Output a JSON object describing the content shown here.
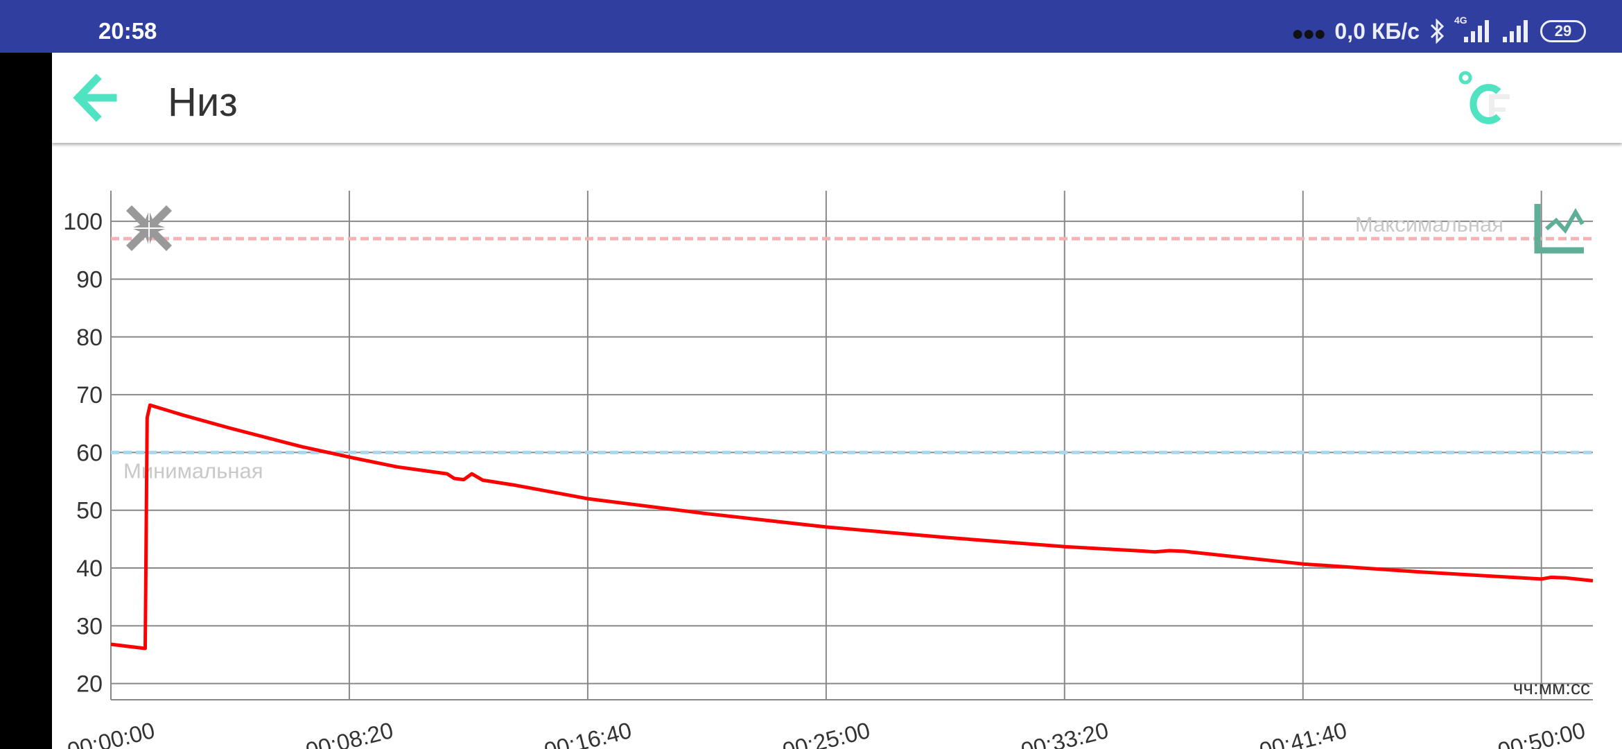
{
  "status_bar": {
    "time": "20:58",
    "network_speed": "0,0 КБ/с",
    "network_type": "4G",
    "battery_level": "29",
    "icons": [
      "more-dots-icon",
      "bluetooth-icon",
      "signal-4g-icon",
      "signal-icon",
      "battery-icon"
    ]
  },
  "app_bar": {
    "title": "Низ",
    "back_icon": "arrow-left-icon",
    "unit_toggle_icon": "celsius-fahrenheit-icon",
    "accent_color": "#50e3c2"
  },
  "chart_data": {
    "type": "line",
    "title": "",
    "xlabel": "чч:мм:сс",
    "ylabel": "",
    "x_ticks": [
      "00:00:00",
      "00:08:20",
      "00:16:40",
      "00:25:00",
      "00:33:20",
      "00:41:40",
      "00:50:00"
    ],
    "y_ticks": [
      20,
      30,
      40,
      50,
      60,
      70,
      80,
      90,
      100
    ],
    "ylim": [
      17.2,
      105.3
    ],
    "xlim": [
      "00:00:00",
      "00:51:48"
    ],
    "grid": true,
    "line_color": "#ff0000",
    "thresholds": [
      {
        "label": "Максимальная",
        "value": 97,
        "color": "#f2b3b8"
      },
      {
        "label": "Минимальная",
        "value": 60,
        "color": "#a8d8f0"
      }
    ],
    "series": [
      {
        "points": [
          [
            "00:00:00",
            26.8
          ],
          [
            "00:01:10",
            26.1
          ],
          [
            "00:01:12",
            26.1
          ],
          [
            "00:01:16",
            66.0
          ],
          [
            "00:01:22",
            68.2
          ],
          [
            "00:02:30",
            66.5
          ],
          [
            "00:04:10",
            64.2
          ],
          [
            "00:06:40",
            61.0
          ],
          [
            "00:08:20",
            59.2
          ],
          [
            "00:10:00",
            57.5
          ],
          [
            "00:11:45",
            56.3
          ],
          [
            "00:12:00",
            55.5
          ],
          [
            "00:12:20",
            55.3
          ],
          [
            "00:12:37",
            56.3
          ],
          [
            "00:13:00",
            55.2
          ],
          [
            "00:14:10",
            54.3
          ],
          [
            "00:16:40",
            52.0
          ],
          [
            "00:20:50",
            49.4
          ],
          [
            "00:25:00",
            47.1
          ],
          [
            "00:29:10",
            45.3
          ],
          [
            "00:33:20",
            43.7
          ],
          [
            "00:35:50",
            43.0
          ],
          [
            "00:36:30",
            42.8
          ],
          [
            "00:37:00",
            43.0
          ],
          [
            "00:37:30",
            42.9
          ],
          [
            "00:41:40",
            40.7
          ],
          [
            "00:45:50",
            39.3
          ],
          [
            "00:50:00",
            38.1
          ],
          [
            "00:50:20",
            38.4
          ],
          [
            "00:50:50",
            38.3
          ],
          [
            "00:51:48",
            37.8
          ]
        ]
      }
    ],
    "tool_icons": [
      "collapse-icon",
      "chart-type-icon"
    ]
  }
}
